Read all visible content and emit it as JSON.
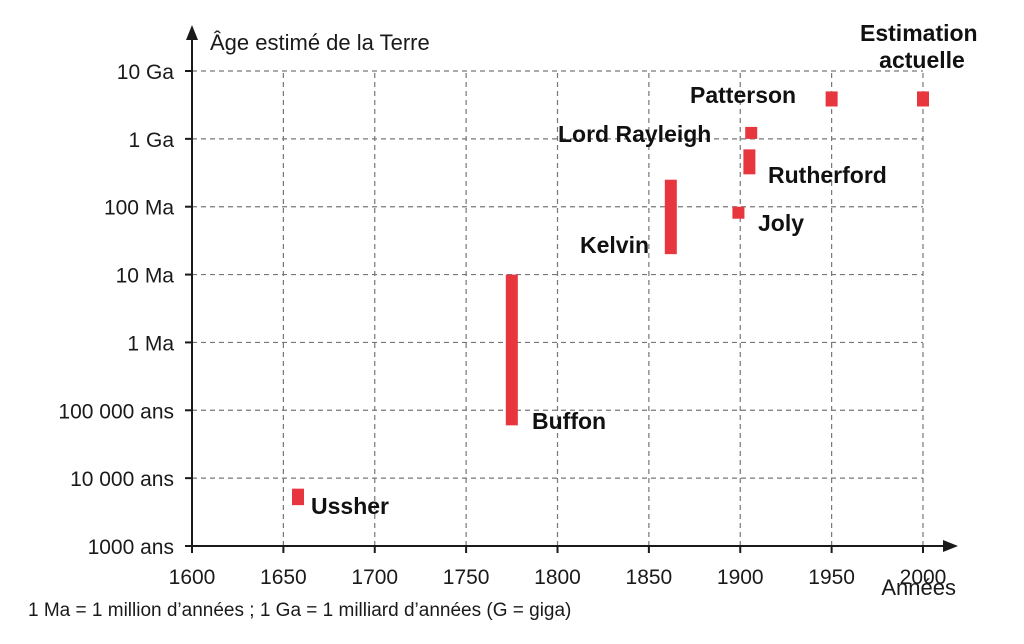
{
  "chart_data": {
    "type": "range",
    "ylabel": "Âge estimé de la Terre",
    "xlabel": "Années",
    "xlim": [
      1600,
      2010
    ],
    "xticks": [
      1600,
      1650,
      1700,
      1750,
      1800,
      1850,
      1900,
      1950,
      2000
    ],
    "y_scale": "log",
    "ylim": [
      1000,
      10000000000
    ],
    "yticks": [
      {
        "value": 1000,
        "label": "1000 ans"
      },
      {
        "value": 10000,
        "label": "10 000 ans"
      },
      {
        "value": 100000,
        "label": "100 000 ans"
      },
      {
        "value": 1000000,
        "label": "1 Ma"
      },
      {
        "value": 10000000,
        "label": "10 Ma"
      },
      {
        "value": 100000000,
        "label": "100 Ma"
      },
      {
        "value": 1000000000,
        "label": "1 Ga"
      },
      {
        "value": 10000000000,
        "label": "10 Ga"
      }
    ],
    "grid": true,
    "bar_color": "#e8363f",
    "estimates": [
      {
        "name": "Ussher",
        "year": 1658,
        "age_min": 4000,
        "age_max": 7000
      },
      {
        "name": "Buffon",
        "year": 1775,
        "age_min": 60000,
        "age_max": 10000000
      },
      {
        "name": "Kelvin",
        "year": 1862,
        "age_min": 20000000,
        "age_max": 250000000
      },
      {
        "name": "Joly",
        "year": 1899,
        "age_min": 70000000,
        "age_max": 100000000
      },
      {
        "name": "Rutherford",
        "year": 1905,
        "age_min": 300000000,
        "age_max": 700000000
      },
      {
        "name": "Lord Rayleigh",
        "year": 1906,
        "age_min": 1000000000,
        "age_max": 1500000000
      },
      {
        "name": "Patterson",
        "year": 1950,
        "age_min": 3000000000,
        "age_max": 5000000000
      },
      {
        "name": "Estimation actuelle",
        "year": 2000,
        "age_min": 3000000000,
        "age_max": 5000000000
      }
    ]
  },
  "footnote": "1 Ma = 1 million d’années ; 1 Ga = 1 milliard d’années (G = giga)"
}
